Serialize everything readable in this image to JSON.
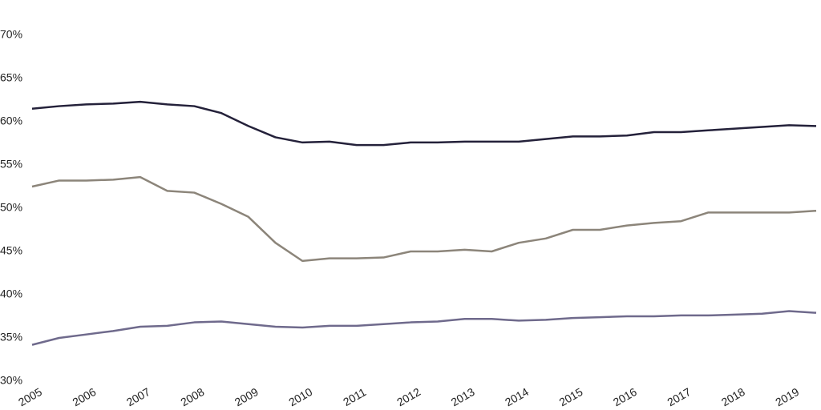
{
  "chart_data": {
    "type": "line",
    "x": [
      2005,
      2005.5,
      2006,
      2006.5,
      2007,
      2007.5,
      2008,
      2008.5,
      2009,
      2009.5,
      2010,
      2010.5,
      2011,
      2011.5,
      2012,
      2012.5,
      2013,
      2013.5,
      2014,
      2014.5,
      2015,
      2015.5,
      2016,
      2016.5,
      2017,
      2017.5,
      2018,
      2018.5,
      2019,
      2019.5
    ],
    "series": [
      {
        "color": "#24213a",
        "values": [
          61.5,
          61.8,
          62,
          62.1,
          62.3,
          62,
          61.8,
          61,
          59.5,
          58.2,
          57.6,
          57.7,
          57.3,
          57.3,
          57.6,
          57.6,
          57.7,
          57.7,
          57.7,
          58,
          58.3,
          58.3,
          58.4,
          58.8,
          58.8,
          59,
          59.2,
          59.4,
          59.6,
          59.5
        ]
      },
      {
        "color": "#8c857a",
        "values": [
          52.5,
          53.2,
          53.2,
          53.3,
          53.6,
          52,
          51.8,
          50.5,
          49,
          46,
          43.9,
          44.2,
          44.2,
          44.3,
          45,
          45,
          45.2,
          45,
          46,
          46.5,
          47.5,
          47.5,
          48,
          48.3,
          48.5,
          49.5,
          49.5,
          49.5,
          49.5,
          49.7
        ]
      },
      {
        "color": "#6f6a8c",
        "values": [
          34.2,
          35,
          35.4,
          35.8,
          36.3,
          36.4,
          36.8,
          36.9,
          36.6,
          36.3,
          36.2,
          36.4,
          36.4,
          36.6,
          36.8,
          36.9,
          37.2,
          37.2,
          37,
          37.1,
          37.3,
          37.4,
          37.5,
          37.5,
          37.6,
          37.6,
          37.7,
          37.8,
          38.1,
          37.9
        ]
      }
    ],
    "xlim": [
      2005,
      2019.5
    ],
    "xticks": [
      2005,
      2006,
      2007,
      2008,
      2009,
      2010,
      2011,
      2012,
      2013,
      2014,
      2015,
      2016,
      2017,
      2018,
      2019
    ],
    "ylim": [
      30,
      70
    ],
    "yticks": [
      {
        "value": 30,
        "label": "30%"
      },
      {
        "value": 35,
        "label": "35%"
      },
      {
        "value": 40,
        "label": "40%"
      },
      {
        "value": 45,
        "label": "45%"
      },
      {
        "value": 50,
        "label": "50%"
      },
      {
        "value": 55,
        "label": "55%"
      },
      {
        "value": 60,
        "label": "60%"
      },
      {
        "value": 65,
        "label": "65%"
      },
      {
        "value": 70,
        "label": "70%"
      }
    ],
    "grid": false
  }
}
